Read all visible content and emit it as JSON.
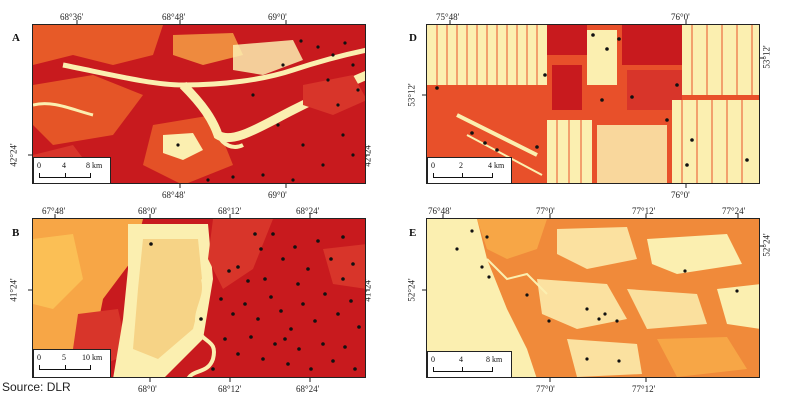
{
  "source": "Source: DLR",
  "colors": {
    "dark_red": "#c0121b",
    "red": "#d8352a",
    "orange": "#ef6a2b",
    "light_orange": "#f7a646",
    "pale": "#fbefb0",
    "points": "#111111"
  },
  "panels": {
    "A": {
      "label": "A",
      "top_coords": [
        "68°36'",
        "68°48'",
        "69°0'"
      ],
      "bottom_coords": [
        "68°48'",
        "69°0'"
      ],
      "left_coord": "42°24'",
      "right_coord": "42°24'",
      "scale": {
        "ticks": [
          "0",
          "4",
          "8 km"
        ]
      }
    },
    "B": {
      "label": "B",
      "top_coords": [
        "67°48'",
        "68°0'",
        "68°12'",
        "68°24'"
      ],
      "bottom_coords": [
        "68°0'",
        "68°12'",
        "68°24'"
      ],
      "left_coord": "41°24'",
      "right_coord": "41°24'",
      "scale": {
        "ticks": [
          "0",
          "5",
          "10 km"
        ]
      }
    },
    "D": {
      "label": "D",
      "top_coords": [
        "75°48'",
        "76°0'"
      ],
      "bottom_coords": [
        "76°0'"
      ],
      "left_coord": "53°12'",
      "right_coord": "53°12'",
      "scale": {
        "ticks": [
          "0",
          "2",
          "4 km"
        ]
      }
    },
    "E": {
      "label": "E",
      "top_coords": [
        "76°48'",
        "77°0'",
        "77°12'",
        "77°24'"
      ],
      "bottom_coords": [
        "77°0'",
        "77°12'"
      ],
      "left_coord": "52°24'",
      "right_coord": "52°24'",
      "scale": {
        "ticks": [
          "0",
          "4",
          "8 km"
        ]
      }
    }
  }
}
